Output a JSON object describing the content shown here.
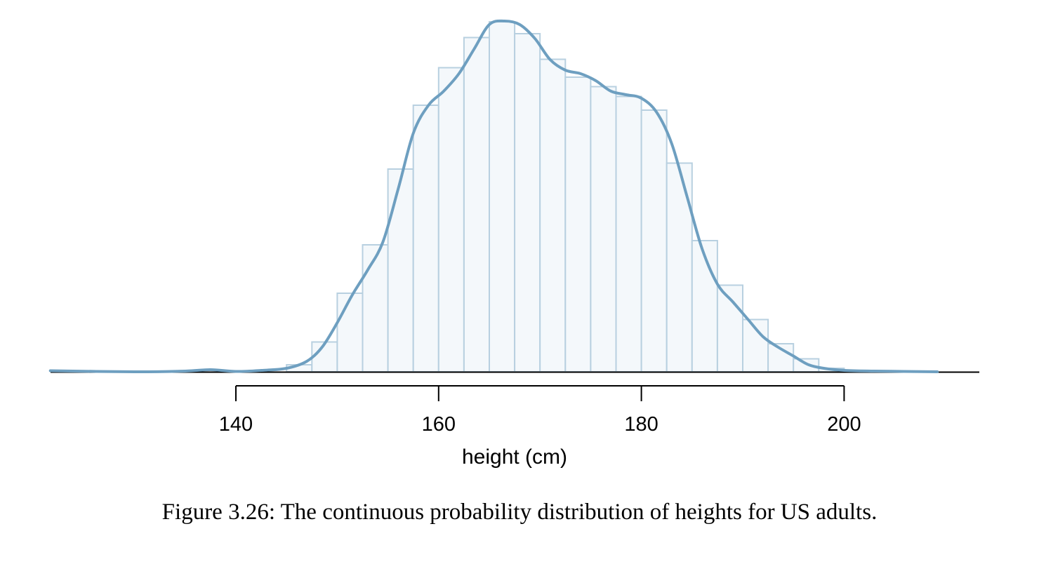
{
  "chart_data": {
    "type": "bar",
    "subtype": "histogram-with-density",
    "xlabel": "height (cm)",
    "ylabel": "",
    "title": "",
    "x_ticks": [
      140,
      160,
      180,
      200
    ],
    "xlim": [
      121.7,
      213.4
    ],
    "bin_width": 2.5,
    "bins": [
      {
        "x0": 145.0,
        "x1": 147.5,
        "value": 0.002
      },
      {
        "x0": 147.5,
        "x1": 150.0,
        "value": 0.0085
      },
      {
        "x0": 150.0,
        "x1": 152.5,
        "value": 0.0224
      },
      {
        "x0": 152.5,
        "x1": 155.0,
        "value": 0.0362
      },
      {
        "x0": 155.0,
        "x1": 157.5,
        "value": 0.0578
      },
      {
        "x0": 157.5,
        "x1": 160.0,
        "value": 0.076
      },
      {
        "x0": 160.0,
        "x1": 162.5,
        "value": 0.0867
      },
      {
        "x0": 162.5,
        "x1": 165.0,
        "value": 0.0953
      },
      {
        "x0": 165.0,
        "x1": 167.5,
        "value": 0.0998
      },
      {
        "x0": 167.5,
        "x1": 170.0,
        "value": 0.0964
      },
      {
        "x0": 170.0,
        "x1": 172.5,
        "value": 0.0891
      },
      {
        "x0": 172.5,
        "x1": 175.0,
        "value": 0.084
      },
      {
        "x0": 175.0,
        "x1": 177.5,
        "value": 0.0813
      },
      {
        "x0": 177.5,
        "x1": 180.0,
        "value": 0.0785
      },
      {
        "x0": 180.0,
        "x1": 182.5,
        "value": 0.0746
      },
      {
        "x0": 182.5,
        "x1": 185.0,
        "value": 0.0595
      },
      {
        "x0": 185.0,
        "x1": 187.5,
        "value": 0.0374
      },
      {
        "x0": 187.5,
        "x1": 190.0,
        "value": 0.0247
      },
      {
        "x0": 190.0,
        "x1": 192.5,
        "value": 0.0149
      },
      {
        "x0": 192.5,
        "x1": 195.0,
        "value": 0.008
      },
      {
        "x0": 195.0,
        "x1": 197.5,
        "value": 0.0037
      },
      {
        "x0": 197.5,
        "x1": 200.0,
        "value": 0.001
      }
    ],
    "density_curve": [
      [
        121.7,
        0.0003
      ],
      [
        130,
        0.0
      ],
      [
        135,
        0.0002
      ],
      [
        137.5,
        0.0006
      ],
      [
        140,
        0.0001
      ],
      [
        142.5,
        0.0004
      ],
      [
        145,
        0.001
      ],
      [
        147,
        0.003
      ],
      [
        148.5,
        0.007
      ],
      [
        150,
        0.014
      ],
      [
        151.5,
        0.022
      ],
      [
        153,
        0.029
      ],
      [
        154.5,
        0.037
      ],
      [
        156,
        0.052
      ],
      [
        157.5,
        0.068
      ],
      [
        159,
        0.076
      ],
      [
        160.5,
        0.08
      ],
      [
        162,
        0.085
      ],
      [
        163.5,
        0.092
      ],
      [
        165,
        0.099
      ],
      [
        166.5,
        0.1
      ],
      [
        168,
        0.099
      ],
      [
        169.5,
        0.095
      ],
      [
        171,
        0.089
      ],
      [
        172.5,
        0.086
      ],
      [
        174,
        0.085
      ],
      [
        175.5,
        0.083
      ],
      [
        177,
        0.08
      ],
      [
        178.5,
        0.079
      ],
      [
        180,
        0.078
      ],
      [
        181.5,
        0.074
      ],
      [
        183,
        0.065
      ],
      [
        184.5,
        0.05
      ],
      [
        186,
        0.035
      ],
      [
        187.5,
        0.025
      ],
      [
        189,
        0.02
      ],
      [
        190.5,
        0.015
      ],
      [
        192,
        0.01
      ],
      [
        193.5,
        0.007
      ],
      [
        195,
        0.0045
      ],
      [
        196.5,
        0.002
      ],
      [
        198,
        0.001
      ],
      [
        200,
        0.0004
      ],
      [
        203,
        0.0002
      ],
      [
        209.2,
        0.0
      ]
    ],
    "colors": {
      "bar_fill": "#f4f8fb",
      "bar_stroke": "#b8d0e0",
      "curve": "#6e9fc0",
      "axis": "#000000"
    }
  },
  "caption": "Figure 3.26: The continuous probability distribution of heights for US adults."
}
